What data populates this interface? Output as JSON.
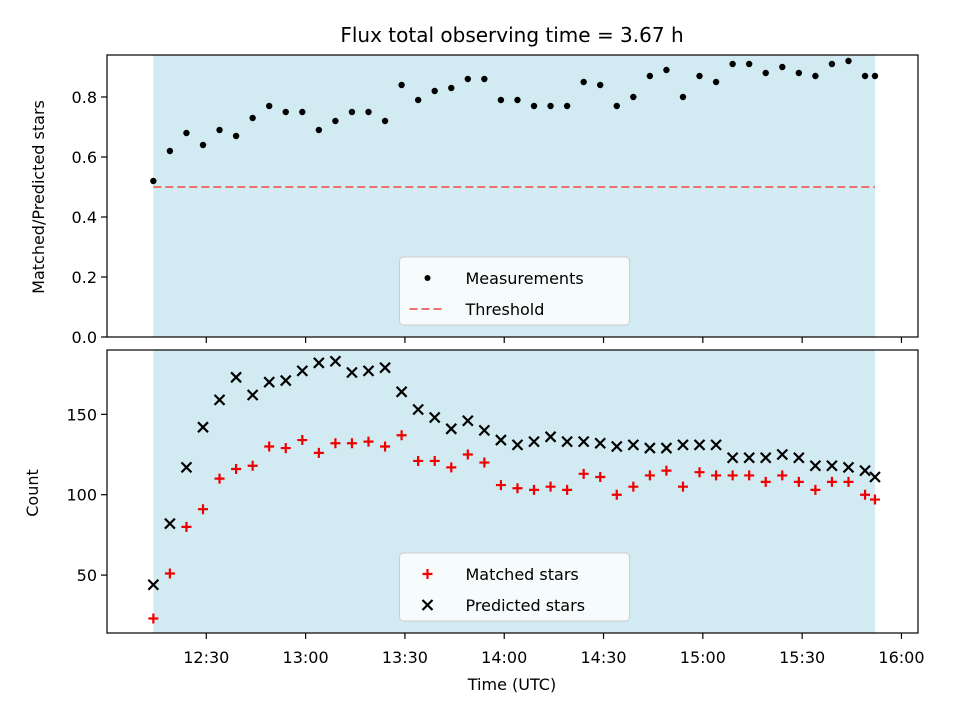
{
  "chart_data": [
    {
      "type": "scatter",
      "title": "Flux total observing time = 3.67 h",
      "ylabel": "Matched/Predicted stars",
      "xlabel": "",
      "ylim": [
        0,
        0.94
      ],
      "yticks": [
        0.0,
        0.2,
        0.4,
        0.6,
        0.8
      ],
      "ytick_labels": [
        "0.0",
        "0.2",
        "0.4",
        "0.6",
        "0.8"
      ],
      "shaded_span": {
        "from": "12:14",
        "to": "15:52",
        "color": "#add8e6"
      },
      "legend": {
        "placement": "bottom-center"
      },
      "series": [
        {
          "name": "Measurements",
          "marker": "dot",
          "color": "#000000",
          "x": [
            "12:14",
            "12:19",
            "12:24",
            "12:29",
            "12:34",
            "12:39",
            "12:44",
            "12:49",
            "12:54",
            "12:59",
            "13:04",
            "13:09",
            "13:14",
            "13:19",
            "13:24",
            "13:29",
            "13:34",
            "13:39",
            "13:44",
            "13:49",
            "13:54",
            "13:59",
            "14:04",
            "14:09",
            "14:14",
            "14:19",
            "14:24",
            "14:29",
            "14:34",
            "14:39",
            "14:44",
            "14:49",
            "14:54",
            "14:59",
            "15:04",
            "15:09",
            "15:14",
            "15:19",
            "15:24",
            "15:29",
            "15:34",
            "15:39",
            "15:44",
            "15:49",
            "15:52"
          ],
          "y": [
            0.52,
            0.62,
            0.68,
            0.64,
            0.69,
            0.67,
            0.73,
            0.77,
            0.75,
            0.75,
            0.69,
            0.72,
            0.75,
            0.75,
            0.72,
            0.84,
            0.79,
            0.82,
            0.83,
            0.86,
            0.86,
            0.79,
            0.79,
            0.77,
            0.77,
            0.77,
            0.85,
            0.84,
            0.77,
            0.8,
            0.87,
            0.89,
            0.8,
            0.87,
            0.85,
            0.91,
            0.91,
            0.88,
            0.9,
            0.88,
            0.87,
            0.91,
            0.92,
            0.87,
            0.87
          ]
        },
        {
          "name": "Threshold",
          "marker": "dashed-line",
          "color": "#f07070",
          "x": [
            "12:14",
            "15:52"
          ],
          "y": [
            0.5,
            0.5
          ]
        }
      ]
    },
    {
      "type": "scatter",
      "title": "",
      "ylabel": "Count",
      "xlabel": "Time (UTC)",
      "ylim": [
        14,
        190
      ],
      "yticks": [
        50,
        100,
        150
      ],
      "ytick_labels": [
        "50",
        "100",
        "150"
      ],
      "xlim": [
        "12:00",
        "16:05"
      ],
      "xticks": [
        "12:30",
        "13:00",
        "13:30",
        "14:00",
        "14:30",
        "15:00",
        "15:30",
        "16:00"
      ],
      "shaded_span": {
        "from": "12:14",
        "to": "15:52",
        "color": "#add8e6"
      },
      "legend": {
        "placement": "bottom-center"
      },
      "series": [
        {
          "name": "Matched stars",
          "marker": "plus",
          "color": "#ee0000",
          "x": [
            "12:14",
            "12:19",
            "12:24",
            "12:29",
            "12:34",
            "12:39",
            "12:44",
            "12:49",
            "12:54",
            "12:59",
            "13:04",
            "13:09",
            "13:14",
            "13:19",
            "13:24",
            "13:29",
            "13:34",
            "13:39",
            "13:44",
            "13:49",
            "13:54",
            "13:59",
            "14:04",
            "14:09",
            "14:14",
            "14:19",
            "14:24",
            "14:29",
            "14:34",
            "14:39",
            "14:44",
            "14:49",
            "14:54",
            "14:59",
            "15:04",
            "15:09",
            "15:14",
            "15:19",
            "15:24",
            "15:29",
            "15:34",
            "15:39",
            "15:44",
            "15:49",
            "15:52"
          ],
          "y": [
            23,
            51,
            80,
            91,
            110,
            116,
            118,
            130,
            129,
            134,
            126,
            132,
            132,
            133,
            130,
            137,
            121,
            121,
            117,
            125,
            120,
            106,
            104,
            103,
            105,
            103,
            113,
            111,
            100,
            105,
            112,
            115,
            105,
            114,
            112,
            112,
            112,
            108,
            112,
            108,
            103,
            108,
            108,
            100,
            97
          ]
        },
        {
          "name": "Predicted stars",
          "marker": "x",
          "color": "#000000",
          "x": [
            "12:14",
            "12:19",
            "12:24",
            "12:29",
            "12:34",
            "12:39",
            "12:44",
            "12:49",
            "12:54",
            "12:59",
            "13:04",
            "13:09",
            "13:14",
            "13:19",
            "13:24",
            "13:29",
            "13:34",
            "13:39",
            "13:44",
            "13:49",
            "13:54",
            "13:59",
            "14:04",
            "14:09",
            "14:14",
            "14:19",
            "14:24",
            "14:29",
            "14:34",
            "14:39",
            "14:44",
            "14:49",
            "14:54",
            "14:59",
            "15:04",
            "15:09",
            "15:14",
            "15:19",
            "15:24",
            "15:29",
            "15:34",
            "15:39",
            "15:44",
            "15:49",
            "15:52"
          ],
          "y": [
            44,
            82,
            117,
            142,
            159,
            173,
            162,
            170,
            171,
            177,
            182,
            183,
            176,
            177,
            179,
            164,
            153,
            148,
            141,
            146,
            140,
            134,
            131,
            133,
            136,
            133,
            133,
            132,
            130,
            131,
            129,
            129,
            131,
            131,
            131,
            123,
            123,
            123,
            125,
            123,
            118,
            118,
            117,
            115,
            111
          ]
        }
      ]
    }
  ]
}
